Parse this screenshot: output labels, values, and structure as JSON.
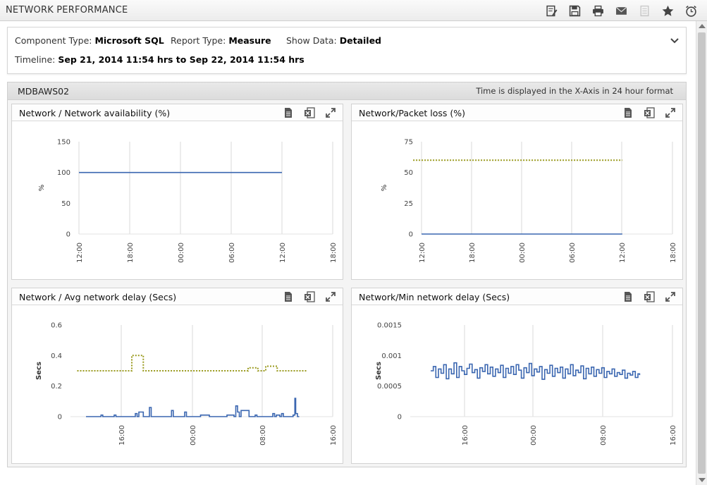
{
  "header": {
    "title": "NETWORK PERFORMANCE",
    "toolbar_icons": [
      "edit-report-icon",
      "save-icon",
      "print-icon",
      "email-icon",
      "document-icon",
      "favorite-star-icon",
      "alarm-clock-icon"
    ]
  },
  "filters": {
    "component_type_label": "Component Type:",
    "component_type_value": "Microsoft SQL",
    "report_type_label": "Report Type:",
    "report_type_value": "Measure",
    "show_data_label": "Show Data:",
    "show_data_value": "Detailed",
    "timeline_label": "Timeline:",
    "timeline_value": "Sep 21, 2014 11:54 hrs to Sep 22, 2014 11:54 hrs"
  },
  "section": {
    "server_name": "MDBAWS02",
    "note": "Time is displayed in the X-Axis in 24 hour format"
  },
  "colors": {
    "series_blue": "#3a66b0",
    "threshold_olive": "#9a9a1e",
    "grid": "#d8d8d8"
  },
  "chart_data": [
    {
      "id": "availability",
      "panel_title": "Network / Network availability (%)",
      "type": "line",
      "ylabel": "%",
      "ylim": [
        0,
        150
      ],
      "yticks": [
        "0",
        "50",
        "100",
        "150"
      ],
      "x_ticks": [
        "12:00",
        "18:00",
        "00:00",
        "06:00",
        "12:00",
        "18:00"
      ],
      "series": [
        {
          "values_hours": [
            0,
            24
          ],
          "values": [
            100,
            100
          ],
          "style": "solid"
        }
      ]
    },
    {
      "id": "packet-loss",
      "panel_title": "Network/Packet loss (%)",
      "type": "line",
      "ylabel": "%",
      "ylim": [
        0,
        75
      ],
      "yticks": [
        "0",
        "25",
        "50",
        "75"
      ],
      "x_ticks": [
        "12:00",
        "18:00",
        "00:00",
        "06:00",
        "12:00",
        "18:00"
      ],
      "series": [
        {
          "values_hours": [
            0,
            24
          ],
          "values": [
            0,
            0
          ],
          "style": "solid"
        },
        {
          "values_hours": [
            -1,
            24
          ],
          "values": [
            60,
            60
          ],
          "style": "dotted"
        }
      ]
    },
    {
      "id": "avg-delay",
      "panel_title": "Network / Avg network delay (Secs)",
      "type": "line",
      "ylabel": "Secs",
      "ylim": [
        0,
        0.6
      ],
      "yticks": [
        "0",
        "0.2",
        "0.4",
        "0.6"
      ],
      "x_ticks": [
        "16:00",
        "00:00",
        "08:00",
        "16:00"
      ],
      "series": [
        {
          "style": "solid",
          "values_hours": [
            0.0,
            1.5,
            1.7,
            1.9,
            2.5,
            3.0,
            3.2,
            3.4,
            4.5,
            5.0,
            5.6,
            5.8,
            6.0,
            6.5,
            7.0,
            7.2,
            7.4,
            8.0,
            9.0,
            9.5,
            9.7,
            9.9,
            10.5,
            11.0,
            11.2,
            11.4,
            12.0,
            13.0,
            14.0,
            15.0,
            16.0,
            16.8,
            17.0,
            17.2,
            17.4,
            17.6,
            18.5,
            19.0,
            19.2,
            19.4,
            20.0,
            21.0,
            21.2,
            21.4,
            21.6,
            22.0,
            22.2,
            22.4,
            23.0,
            23.5,
            23.7,
            23.8,
            24.0,
            24.2
          ],
          "values": [
            0.0,
            0.0,
            0.01,
            0.0,
            0.0,
            0.0,
            0.01,
            0.0,
            0.0,
            0.0,
            0.02,
            0.0,
            0.03,
            0.0,
            0.0,
            0.06,
            0.0,
            0.0,
            0.0,
            0.0,
            0.04,
            0.0,
            0.0,
            0.0,
            0.03,
            0.0,
            0.0,
            0.01,
            0.0,
            0.0,
            0.01,
            0.0,
            0.07,
            0.03,
            0.0,
            0.04,
            0.0,
            0.0,
            0.01,
            0.0,
            0.0,
            0.0,
            0.02,
            0.0,
            0.01,
            0.0,
            0.02,
            0.0,
            0.0,
            0.01,
            0.12,
            0.02,
            0.0,
            0.0
          ]
        },
        {
          "style": "dotted",
          "values_hours": [
            -1.0,
            5.0,
            5.2,
            6.3,
            6.5,
            18.2,
            18.4,
            19.3,
            19.5,
            20.2,
            20.4,
            21.5,
            21.7,
            25.0
          ],
          "values": [
            0.3,
            0.3,
            0.4,
            0.4,
            0.3,
            0.3,
            0.32,
            0.32,
            0.3,
            0.3,
            0.33,
            0.33,
            0.3,
            0.3
          ]
        }
      ]
    },
    {
      "id": "min-delay",
      "panel_title": "Network/Min network delay (Secs)",
      "type": "line",
      "ylabel": "Secs",
      "ylim": [
        0,
        0.0015
      ],
      "yticks": [
        "0",
        "0.0005",
        "0.001",
        "0.0015"
      ],
      "x_ticks": [
        "16:00",
        "00:00",
        "08:00",
        "16:00"
      ],
      "series": [
        {
          "style": "solid",
          "values_hours": [
            0,
            0.3,
            0.6,
            0.9,
            1.2,
            1.5,
            1.8,
            2.1,
            2.4,
            2.7,
            3.0,
            3.3,
            3.6,
            3.9,
            4.2,
            4.5,
            4.8,
            5.1,
            5.4,
            5.7,
            6.0,
            6.3,
            6.6,
            6.9,
            7.2,
            7.5,
            7.8,
            8.1,
            8.4,
            8.7,
            9.0,
            9.3,
            9.6,
            9.9,
            10.2,
            10.5,
            10.8,
            11.1,
            11.4,
            11.7,
            12.0,
            12.3,
            12.6,
            12.9,
            13.2,
            13.5,
            13.8,
            14.1,
            14.4,
            14.7,
            15.0,
            15.3,
            15.6,
            15.9,
            16.2,
            16.5,
            16.8,
            17.1,
            17.4,
            17.7,
            18.0,
            18.3,
            18.6,
            18.9,
            19.2,
            19.5,
            19.8,
            20.1,
            20.4,
            20.7,
            21.0,
            21.3,
            21.6,
            21.9,
            22.2,
            22.5,
            22.8,
            23.1,
            23.4,
            23.7,
            24.0,
            24.2
          ],
          "values": [
            0.00075,
            0.00082,
            0.00064,
            0.00078,
            0.00071,
            0.00085,
            0.00062,
            0.00078,
            0.0007,
            0.00088,
            0.00064,
            0.00082,
            0.00075,
            0.00069,
            0.00079,
            0.00086,
            0.00072,
            0.00077,
            0.00063,
            0.0008,
            0.00074,
            0.00085,
            0.0007,
            0.00081,
            0.00066,
            0.00078,
            0.00072,
            0.00084,
            0.00064,
            0.00079,
            0.00071,
            0.00082,
            0.00069,
            0.00085,
            0.00076,
            0.00063,
            0.0008,
            0.00072,
            0.00087,
            0.00067,
            0.00078,
            0.00073,
            0.00082,
            0.00061,
            0.00077,
            0.00071,
            0.00084,
            0.00066,
            0.00079,
            0.00072,
            0.00081,
            0.00063,
            0.00078,
            0.0007,
            0.00085,
            0.00067,
            0.00076,
            0.00072,
            0.00083,
            0.00062,
            0.00079,
            0.0007,
            0.00081,
            0.00066,
            0.00077,
            0.00071,
            0.0008,
            0.00064,
            0.00074,
            0.0007,
            0.00078,
            0.00066,
            0.00072,
            0.00069,
            0.00076,
            0.00063,
            0.00071,
            0.00068,
            0.00074,
            0.00064,
            0.0007,
            0.00068
          ]
        }
      ]
    }
  ]
}
